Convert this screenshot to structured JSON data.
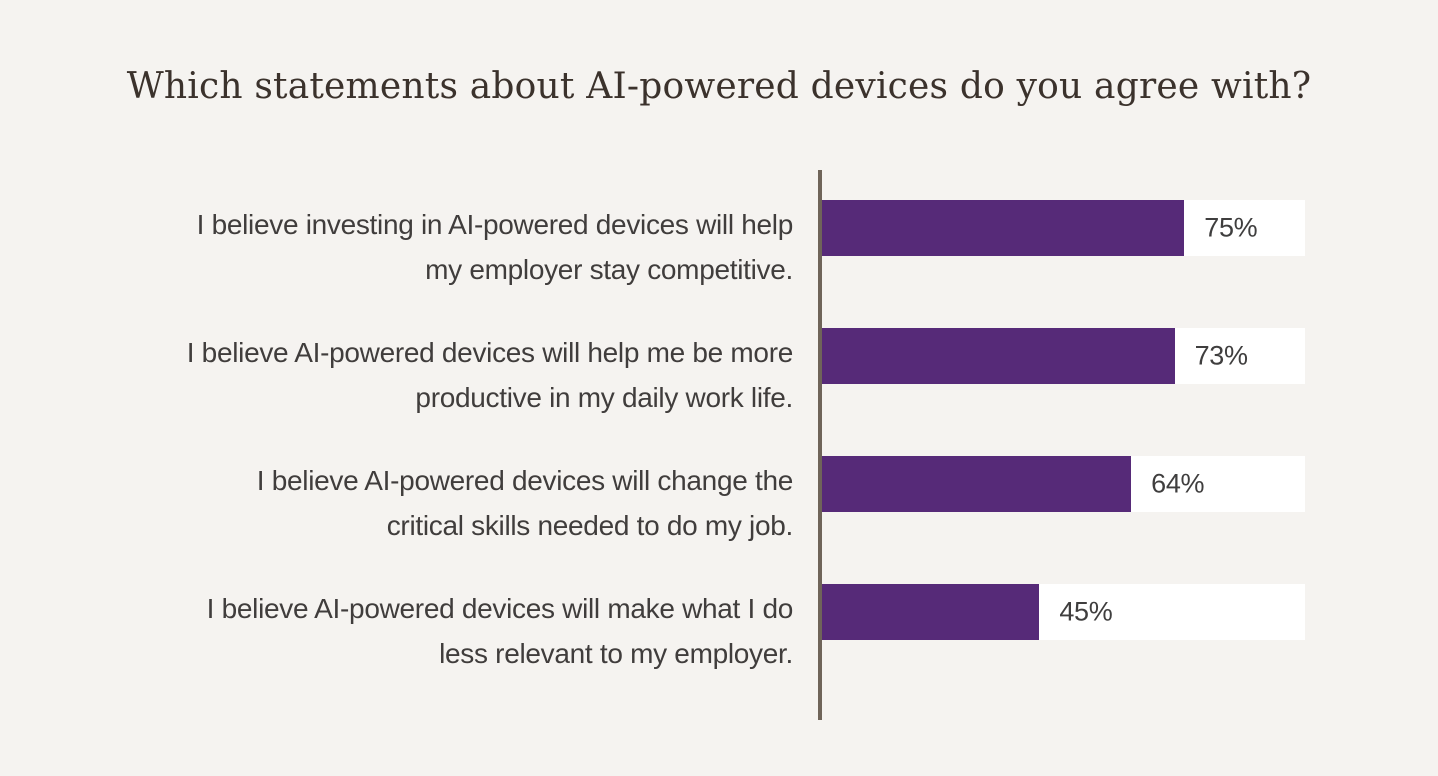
{
  "colors": {
    "background": "#f5f3f0",
    "bar": "#562a78",
    "axis": "#6f6459",
    "track": "#ffffff",
    "label_text": "#403d3c",
    "value_text": "#3f3e3e",
    "title_text": "#3b322c"
  },
  "chart_data": {
    "type": "bar",
    "orientation": "horizontal",
    "title": "Which statements about AI-powered devices do you agree with?",
    "categories": [
      "I believe investing in AI-powered devices will help my employer stay competitive.",
      "I believe AI-powered devices will help me be more productive in my daily work life.",
      "I believe AI-powered devices will change the critical skills needed to do my job.",
      "I believe AI-powered devices will make what I do less relevant to my employer."
    ],
    "values": [
      75,
      73,
      64,
      45
    ],
    "xlabel": "",
    "ylabel": "",
    "xlim": [
      0,
      100
    ],
    "value_suffix": "%",
    "grid": false,
    "legend": false,
    "rows": [
      {
        "lines": [
          "I believe investing in AI-powered devices will help",
          "my employer stay competitive."
        ],
        "value": 75,
        "value_label": "75%"
      },
      {
        "lines": [
          "I believe AI-powered devices will help me be more",
          "productive in my daily work life."
        ],
        "value": 73,
        "value_label": "73%"
      },
      {
        "lines": [
          "I believe AI-powered devices will change the",
          "critical skills needed to do my job."
        ],
        "value": 64,
        "value_label": "64%"
      },
      {
        "lines": [
          "I believe AI-powered devices will make what I do",
          "less relevant to my employer."
        ],
        "value": 45,
        "value_label": "45%"
      }
    ]
  }
}
